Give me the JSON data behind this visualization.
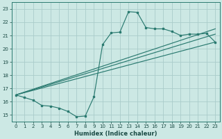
{
  "xlabel": "Humidex (Indice chaleur)",
  "bg_color": "#cce8e4",
  "grid_color": "#aaccca",
  "line_color": "#2a7a70",
  "xlim": [
    -0.5,
    23.5
  ],
  "ylim": [
    14.5,
    23.5
  ],
  "xticks": [
    0,
    1,
    2,
    3,
    4,
    5,
    6,
    7,
    8,
    9,
    10,
    11,
    12,
    13,
    14,
    15,
    16,
    17,
    18,
    19,
    20,
    21,
    22,
    23
  ],
  "yticks": [
    15,
    16,
    17,
    18,
    19,
    20,
    21,
    22,
    23
  ],
  "main_x": [
    0,
    1,
    2,
    3,
    4,
    5,
    6,
    7,
    8,
    9,
    10,
    11,
    12,
    13,
    14,
    15,
    16,
    17,
    18,
    19,
    20,
    21,
    22,
    23
  ],
  "main_y": [
    16.5,
    16.3,
    16.1,
    15.7,
    15.65,
    15.5,
    15.25,
    14.85,
    14.9,
    16.35,
    20.3,
    21.2,
    21.25,
    22.8,
    22.75,
    21.6,
    21.5,
    21.5,
    21.3,
    21.0,
    21.1,
    21.1,
    21.15,
    20.5
  ],
  "reg_lines": [
    {
      "x0": 0.0,
      "y0": 16.5,
      "x1": 23,
      "y1": 20.5
    },
    {
      "x0": 0.0,
      "y0": 16.5,
      "x1": 23,
      "y1": 21.1
    },
    {
      "x0": 0.0,
      "y0": 16.5,
      "x1": 23,
      "y1": 21.5
    }
  ]
}
